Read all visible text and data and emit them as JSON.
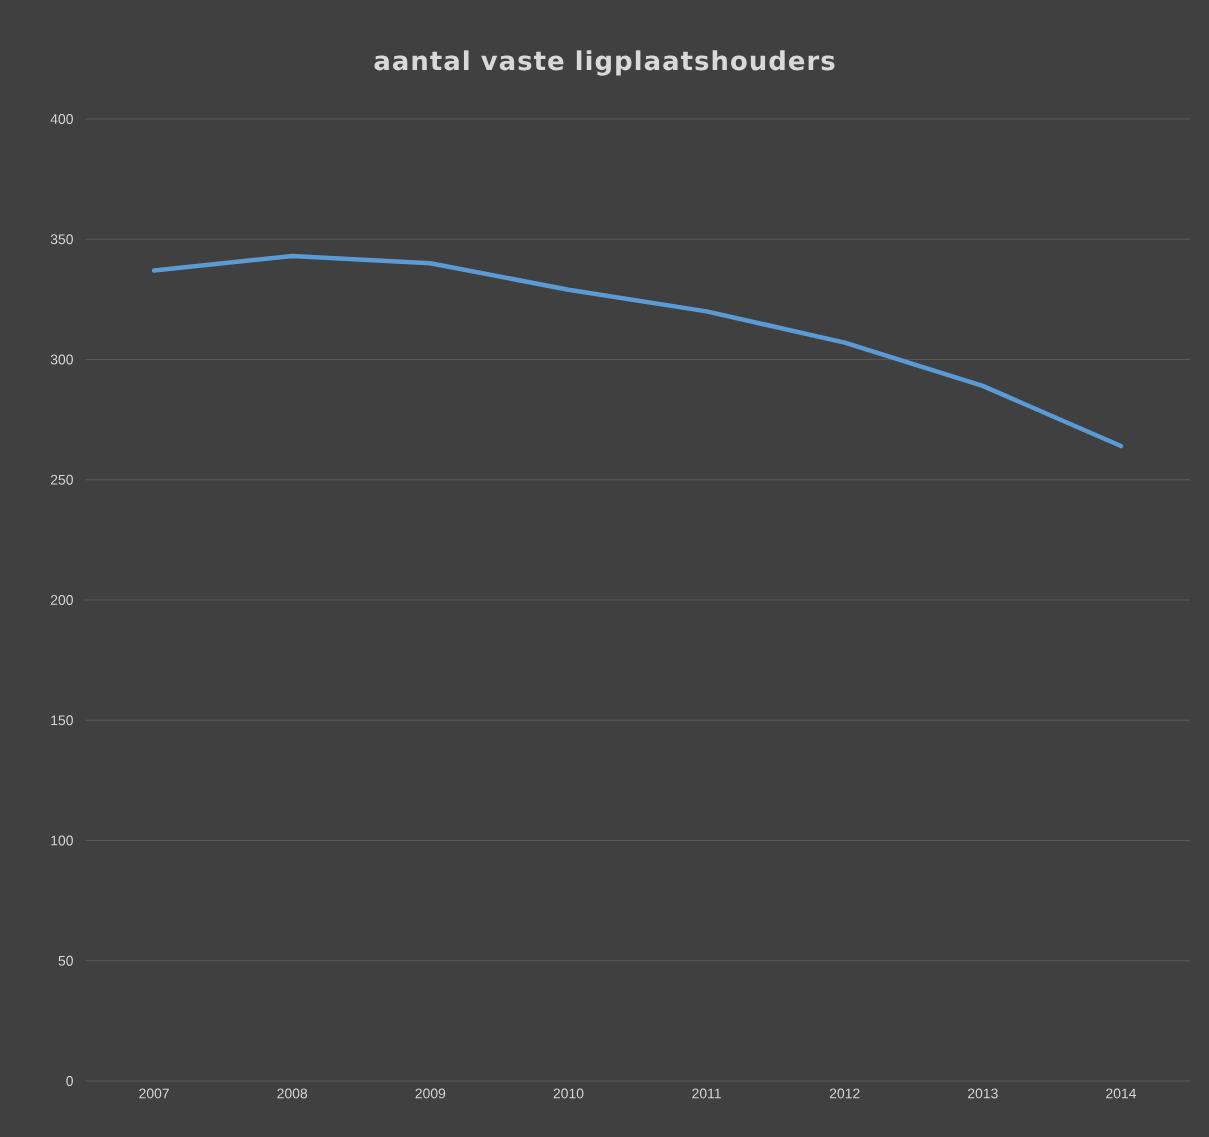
{
  "chart_data": {
    "type": "line",
    "title": "aantal vaste ligplaatshouders",
    "categories": [
      "2007",
      "2008",
      "2009",
      "2010",
      "2011",
      "2012",
      "2013",
      "2014"
    ],
    "series": [
      {
        "color": "#5b9bd5",
        "values": [
          337,
          343,
          340,
          329,
          320,
          307,
          289,
          264
        ]
      }
    ],
    "ylim": [
      0,
      400
    ],
    "yticks": [
      0,
      50,
      100,
      150,
      200,
      250,
      300,
      350,
      400
    ],
    "grid": "y",
    "legend": false,
    "marker": "none",
    "line_style": "solid"
  }
}
